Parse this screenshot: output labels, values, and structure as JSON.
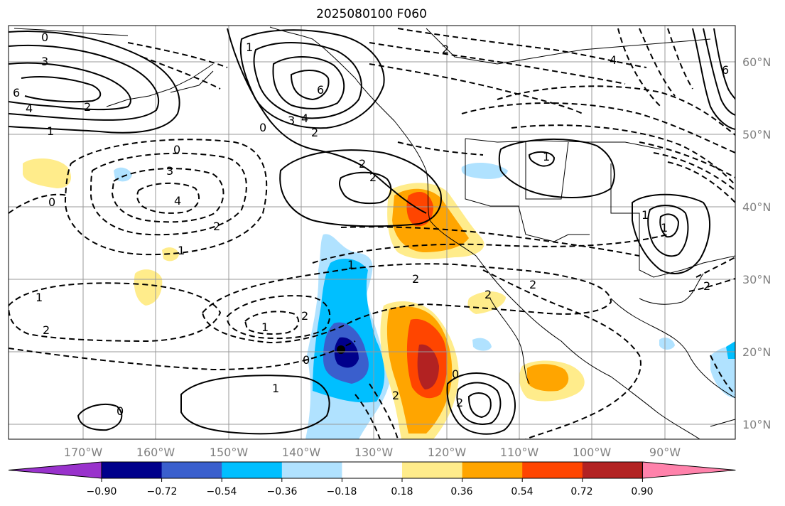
{
  "title": "2025080100 F060",
  "map": {
    "lat_labels": [
      "60°N",
      "50°N",
      "40°N",
      "30°N",
      "20°N",
      "10°N"
    ],
    "lon_labels": [
      "170°W",
      "160°W",
      "150°W",
      "140°W",
      "130°W",
      "120°W",
      "110°W",
      "100°W",
      "90°W"
    ],
    "contour_labels": [
      "0",
      "3",
      "6",
      "4",
      "2",
      "1",
      "0",
      "1",
      "3",
      "6",
      "4",
      "2",
      "2",
      "0",
      "3",
      "4",
      "0",
      "2",
      "2",
      "4",
      "2",
      "1",
      "1",
      "2",
      "1",
      "1",
      "1",
      "2",
      "2",
      "2",
      "0",
      "2",
      "0",
      "1",
      "0",
      "2",
      "2",
      "1",
      "1",
      "2",
      "6"
    ]
  },
  "colorbar": {
    "ticks": [
      "−0.90",
      "−0.72",
      "−0.54",
      "−0.36",
      "−0.18",
      "0.18",
      "0.36",
      "0.54",
      "0.72",
      "0.90"
    ],
    "colors": [
      "#9932cc",
      "#00008b",
      "#3a5fcd",
      "#00bfff",
      "#b0e2ff",
      "#ffffff",
      "#ffec8b",
      "#ffa500",
      "#ff4500",
      "#b22222",
      "#ff82ab"
    ]
  }
}
